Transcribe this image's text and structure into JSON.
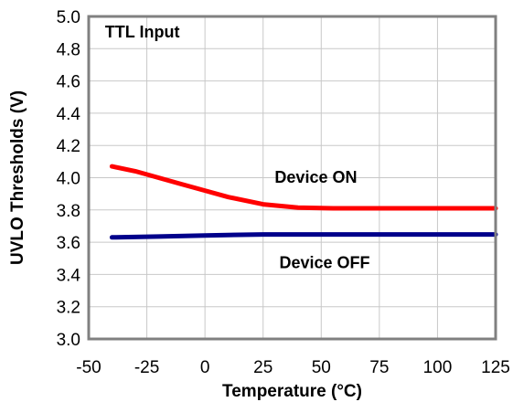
{
  "chart_data": {
    "type": "line",
    "title": "",
    "xlabel": "Temperature (°C)",
    "ylabel": "UVLO Thresholds (V)",
    "xlim": [
      -50,
      125
    ],
    "ylim": [
      3.0,
      5.0
    ],
    "x_ticks": [
      -50,
      -25,
      0,
      25,
      50,
      75,
      100,
      125
    ],
    "x_tick_labels": [
      "-50",
      "-25",
      "0",
      "25",
      "50",
      "75",
      "100",
      "125"
    ],
    "y_ticks": [
      3.0,
      3.2,
      3.4,
      3.6,
      3.8,
      4.0,
      4.2,
      4.4,
      4.6,
      4.8,
      5.0
    ],
    "y_tick_labels": [
      "3.0",
      "3.2",
      "3.4",
      "3.6",
      "3.8",
      "4.0",
      "4.2",
      "4.4",
      "4.6",
      "4.8",
      "5.0"
    ],
    "grid": true,
    "annotations": [
      {
        "text": "TTL Input",
        "x": -43,
        "y": 4.87
      },
      {
        "text": "Device ON",
        "x": 30,
        "y": 3.97
      },
      {
        "text": "Device OFF",
        "x": 32,
        "y": 3.44
      }
    ],
    "series": [
      {
        "color": "#ff0000",
        "x": [
          -40,
          -30,
          -20,
          -10,
          0,
          10,
          25,
          40,
          55,
          75,
          100,
          125
        ],
        "y": [
          4.07,
          4.04,
          4.0,
          3.96,
          3.92,
          3.88,
          3.835,
          3.815,
          3.81,
          3.81,
          3.81,
          3.81
        ]
      },
      {
        "color": "#00008b",
        "x": [
          -40,
          -20,
          0,
          25,
          50,
          75,
          100,
          125
        ],
        "y": [
          3.63,
          3.635,
          3.642,
          3.648,
          3.648,
          3.648,
          3.648,
          3.648
        ]
      }
    ]
  }
}
